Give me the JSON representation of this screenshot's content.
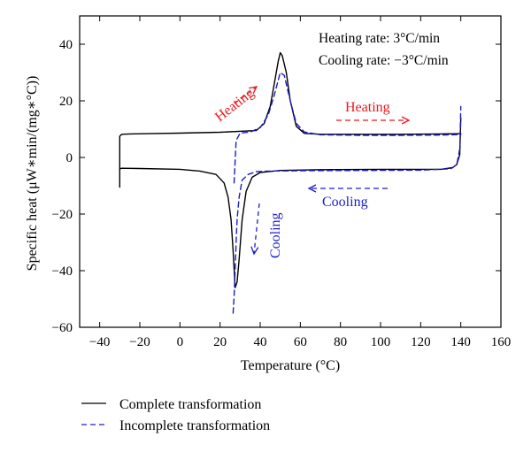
{
  "chart_data": {
    "type": "line",
    "title": "",
    "xlabel": "Temperature (°C)",
    "ylabel": "Specific heat (μW∗min/(mg∗°C))",
    "xlim": [
      -50,
      160
    ],
    "ylim": [
      -60,
      50
    ],
    "x_ticks": [
      -40,
      -20,
      0,
      20,
      40,
      60,
      80,
      100,
      120,
      140,
      160
    ],
    "y_ticks": [
      -60,
      -40,
      -20,
      0,
      20,
      40
    ],
    "x_tick_labels": [
      "−40",
      "−20",
      "0",
      "20",
      "40",
      "60",
      "80",
      "100",
      "120",
      "140",
      "160"
    ],
    "y_tick_labels": [
      "−60",
      "−40",
      "−20",
      "0",
      "20",
      "40"
    ],
    "grid": false,
    "legend_position": "bottom-left",
    "info_lines": [
      "Heating rate: 3°C/min",
      "Cooling rate: −3°C/min"
    ],
    "annotations": [
      {
        "text": "Heating",
        "color": "#e8171d",
        "arrow": "up-right"
      },
      {
        "text": "Heating",
        "color": "#e8171d",
        "arrow": "right"
      },
      {
        "text": "Cooling",
        "color": "#1c1ccc",
        "arrow": "left"
      },
      {
        "text": "Cooling",
        "color": "#1c1ccc",
        "arrow": "down"
      }
    ],
    "series": [
      {
        "name": "Complete transformation",
        "color": "#000000",
        "style": "solid",
        "segments": [
          {
            "x": [
              -30,
              -30,
              -29,
              -25,
              -15,
              0,
              20,
              38,
              42,
              45,
              47,
              49,
              50,
              51,
              53,
              55,
              58,
              62,
              70,
              90,
              110,
              130,
              140
            ],
            "y": [
              -10.5,
              7.5,
              8.2,
              8.3,
              8.4,
              8.6,
              8.9,
              9.5,
              12,
              18,
              26,
              34,
              37,
              36,
              30,
              20,
              11,
              8.5,
              8.2,
              8.2,
              8.2,
              8.3,
              8.4
            ]
          },
          {
            "x": [
              -30,
              -29,
              -20,
              0,
              10,
              18,
              22,
              24,
              25.5,
              26.5,
              27.5,
              28.5,
              29.5,
              31,
              33,
              36,
              40,
              50,
              70,
              100,
              130,
              136,
              138,
              139.5,
              140
            ],
            "y": [
              -4,
              -3.8,
              -3.9,
              -4.2,
              -4.8,
              -6,
              -9,
              -14,
              -22,
              -33,
              -46,
              -44,
              -36,
              -22,
              -12,
              -7,
              -5.3,
              -4.6,
              -4.3,
              -4.2,
              -4.2,
              -3.6,
              -2.5,
              1,
              14
            ]
          }
        ]
      },
      {
        "name": "Incomplete transformation",
        "color": "#1c1ccc",
        "style": "dashed",
        "segments": [
          {
            "x": [
              27,
              28,
              30,
              35,
              40,
              44,
              47,
              50,
              52,
              55,
              58,
              62,
              70,
              90,
              110,
              130,
              140
            ],
            "y": [
              -9,
              6,
              8.6,
              9,
              10.5,
              15,
              22,
              30,
              29,
              20,
              12,
              9,
              8,
              7.8,
              7.8,
              7.9,
              8.1
            ]
          },
          {
            "x": [
              26.5,
              27,
              27.5,
              28,
              28.5,
              29.5,
              31,
              34,
              38,
              45,
              60,
              90,
              120,
              135,
              138,
              139.5,
              140
            ],
            "y": [
              -55,
              -49,
              -40,
              -30,
              -22,
              -14,
              -8,
              -6,
              -5,
              -4.8,
              -4.7,
              -4.6,
              -4.5,
              -4.0,
              -2.5,
              3,
              18
            ]
          }
        ]
      }
    ]
  }
}
